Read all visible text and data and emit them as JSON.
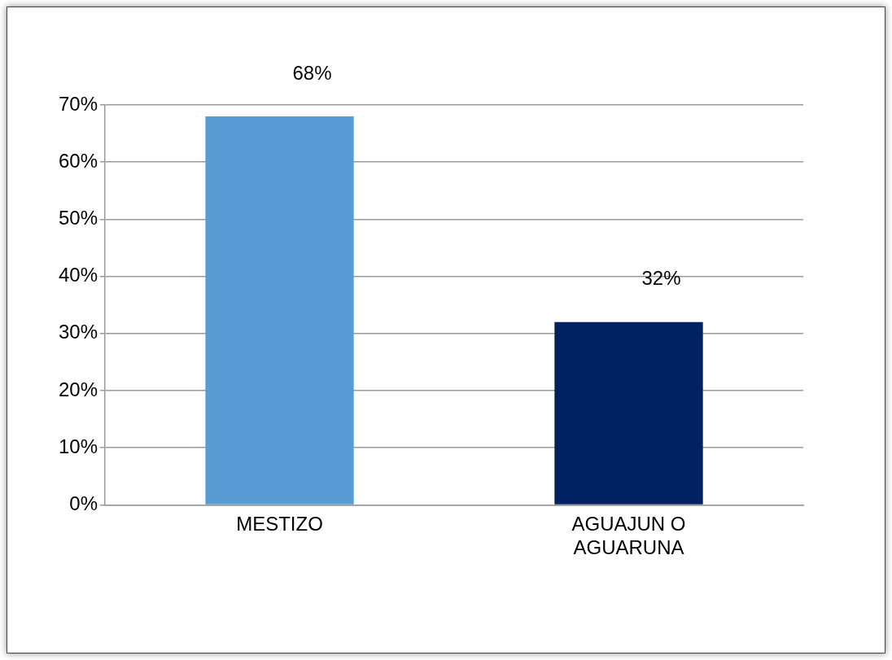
{
  "chart_data": {
    "type": "bar",
    "categories": [
      "MESTIZO",
      "AGUAJUN O AGUARUNA"
    ],
    "values": [
      68,
      32
    ],
    "colors": [
      "#5b9bd5",
      "#002060"
    ],
    "value_labels": [
      "68%",
      "32%"
    ],
    "ylim": [
      0,
      70
    ],
    "yticks": [
      {
        "value": 0,
        "label": "0%"
      },
      {
        "value": 10,
        "label": "10%"
      },
      {
        "value": 20,
        "label": "20%"
      },
      {
        "value": 30,
        "label": "30%"
      },
      {
        "value": 40,
        "label": "40%"
      },
      {
        "value": 50,
        "label": "50%"
      },
      {
        "value": 60,
        "label": "60%"
      },
      {
        "value": 70,
        "label": "70%"
      }
    ],
    "grid": "y",
    "legend": false
  }
}
